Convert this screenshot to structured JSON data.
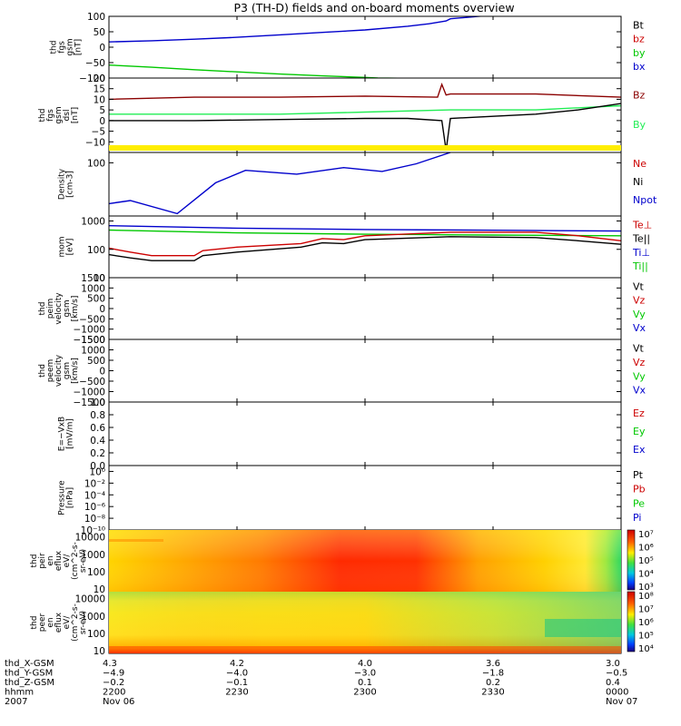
{
  "title": "P3 (TH-D) fields and on-board moments overview",
  "colors": {
    "black": "#000000",
    "red": "#cc0000",
    "darkred": "#8b0000",
    "green": "#00c800",
    "lime": "#22ee55",
    "blue": "#0000cc",
    "yellow": "#ffee00"
  },
  "chart_data": {
    "type": "line",
    "title": "P3 (TH-D) fields and on-board moments overview",
    "x_range_minutes": [
      0,
      120
    ],
    "x_tick_minutes": [
      0,
      30,
      60,
      90,
      120
    ],
    "panels": [
      {
        "id": "fgs",
        "ylabel": [
          "thd",
          "fgs",
          "gsm",
          "[nT]"
        ],
        "ylim": [
          -100,
          100
        ],
        "yticks": [
          -100,
          -50,
          0,
          50,
          100
        ],
        "ytick_labels": [
          "−100",
          "−50",
          "0",
          "50",
          "100"
        ],
        "legend": [
          {
            "text": "Bt",
            "color": "#000000"
          },
          {
            "text": "bz",
            "color": "#cc0000"
          },
          {
            "text": "by",
            "color": "#00c800"
          },
          {
            "text": "bx",
            "color": "#0000cc"
          }
        ],
        "series": [
          {
            "name": "bx",
            "color": "#0000cc",
            "x": [
              0,
              10,
              20,
              30,
              40,
              50,
              60,
              70,
              75,
              79,
              80,
              85,
              90
            ],
            "y": [
              17,
              21,
              26,
              32,
              40,
              48,
              56,
              68,
              76,
              85,
              92,
              98,
              104
            ]
          },
          {
            "name": "by",
            "color": "#00c800",
            "x": [
              0,
              10,
              20,
              30,
              40,
              50,
              60,
              63,
              70
            ],
            "y": [
              -58,
              -65,
              -73,
              -80,
              -87,
              -93,
              -98,
              -100,
              -101
            ]
          }
        ]
      },
      {
        "id": "fgs_dsl",
        "ylabel": [
          "thd",
          "fgs",
          "gsm",
          "dsl",
          "[nT]"
        ],
        "ylim": [
          -15,
          20
        ],
        "yticks": [
          -10,
          -5,
          0,
          5,
          10,
          15,
          20
        ],
        "ytick_labels": [
          "−10",
          "−5",
          "0",
          "5",
          "10",
          "15",
          "20"
        ],
        "legend": [
          {
            "text": "Bz",
            "color": "#8b0000"
          },
          {
            "text": "By",
            "color": "#22ee55"
          }
        ],
        "series": [
          {
            "name": "Bz",
            "color": "#8b0000",
            "x": [
              0,
              20,
              40,
              60,
              77,
              78,
              79,
              80,
              100,
              120
            ],
            "y": [
              10,
              11,
              11,
              11.5,
              11,
              17,
              12,
              12.5,
              12.5,
              11
            ]
          },
          {
            "name": "By",
            "color": "#22ee55",
            "x": [
              0,
              20,
              40,
              60,
              80,
              100,
              110,
              120
            ],
            "y": [
              3,
              3,
              3,
              4,
              5,
              5,
              6,
              7
            ]
          },
          {
            "name": "Bt",
            "color": "#000000",
            "x": [
              0,
              20,
              40,
              60,
              70,
              78,
              79,
              80,
              100,
              110,
              120
            ],
            "y": [
              0,
              0,
              0.5,
              1,
              1,
              0,
              -14,
              1,
              3,
              5,
              8
            ]
          }
        ]
      },
      {
        "id": "density",
        "ylabel": [
          "Density",
          "[cm-3]"
        ],
        "log": true,
        "ylim": [
          0.35,
          300
        ],
        "yticks": [
          100
        ],
        "ytick_labels": [
          "100"
        ],
        "legend": [
          {
            "text": "Ne",
            "color": "#cc0000"
          },
          {
            "text": "Ni",
            "color": "#000000"
          },
          {
            "text": "Npot",
            "color": "#0000cc"
          }
        ],
        "series": [
          {
            "name": "Npot",
            "color": "#0000cc",
            "x": [
              0,
              5,
              16,
              25,
              32,
              44,
              55,
              64,
              72,
              80
            ],
            "y": [
              1.3,
              1.8,
              0.45,
              12,
              45,
              30,
              60,
              40,
              90,
              300
            ]
          }
        ]
      },
      {
        "id": "temperature",
        "ylabel": [
          "mom",
          "[eV]"
        ],
        "log": true,
        "ylim": [
          10,
          1500
        ],
        "yticks": [
          10,
          100,
          1000
        ],
        "ytick_labels": [
          "10",
          "100",
          "1000"
        ],
        "legend": [
          {
            "text": "Te⊥",
            "color": "#cc0000"
          },
          {
            "text": "Te||",
            "color": "#000000"
          },
          {
            "text": "Ti⊥",
            "color": "#0000cc"
          },
          {
            "text": "Ti||",
            "color": "#00c800"
          }
        ],
        "series": [
          {
            "name": "Ti⊥",
            "color": "#0000cc",
            "x": [
              0,
              30,
              60,
              90,
              120
            ],
            "y": [
              680,
              560,
              500,
              470,
              440
            ]
          },
          {
            "name": "Ti||",
            "color": "#00c800",
            "x": [
              0,
              30,
              60,
              90,
              120
            ],
            "y": [
              480,
              380,
              340,
              320,
              300
            ]
          },
          {
            "name": "Te⊥",
            "color": "#cc0000",
            "x": [
              0,
              5,
              10,
              20,
              22,
              30,
              45,
              50,
              55,
              60,
              80,
              100,
              110,
              120
            ],
            "y": [
              110,
              80,
              60,
              60,
              90,
              120,
              160,
              240,
              220,
              300,
              400,
              400,
              300,
              200
            ]
          },
          {
            "name": "Te||",
            "color": "#000000",
            "x": [
              0,
              5,
              10,
              20,
              22,
              30,
              45,
              50,
              55,
              60,
              80,
              100,
              110,
              120
            ],
            "y": [
              65,
              50,
              40,
              40,
              60,
              80,
              120,
              170,
              160,
              220,
              280,
              260,
              200,
              150
            ]
          }
        ]
      },
      {
        "id": "peim",
        "ylabel": [
          "thd",
          "peim",
          "velocity",
          "gsm",
          "[km/s]"
        ],
        "ylim": [
          -1500,
          1500
        ],
        "yticks": [
          -1500,
          -1000,
          -500,
          0,
          500,
          1000,
          1500
        ],
        "ytick_labels": [
          "−1500",
          "−1000",
          "−500",
          "0",
          "500",
          "1000",
          "1500"
        ],
        "legend": [
          {
            "text": "Vt",
            "color": "#000000"
          },
          {
            "text": "Vz",
            "color": "#cc0000"
          },
          {
            "text": "Vy",
            "color": "#00c800"
          },
          {
            "text": "Vx",
            "color": "#0000cc"
          }
        ],
        "series": []
      },
      {
        "id": "peem",
        "ylabel": [
          "thd",
          "peem",
          "velocity",
          "gsm",
          "[km/s]"
        ],
        "ylim": [
          -1500,
          1500
        ],
        "yticks": [
          -1500,
          -1000,
          -500,
          0,
          500,
          1000,
          1500
        ],
        "ytick_labels": [
          "−1500",
          "−1000",
          "−500",
          "0",
          "500",
          "1000",
          "1500"
        ],
        "legend": [
          {
            "text": "Vt",
            "color": "#000000"
          },
          {
            "text": "Vz",
            "color": "#cc0000"
          },
          {
            "text": "Vy",
            "color": "#00c800"
          },
          {
            "text": "Vx",
            "color": "#0000cc"
          }
        ],
        "series": []
      },
      {
        "id": "efield",
        "ylabel": [
          "E=−VxB",
          "[mV/m]"
        ],
        "ylim": [
          0,
          1
        ],
        "yticks": [
          0,
          0.2,
          0.4,
          0.6,
          0.8,
          1
        ],
        "ytick_labels": [
          "0.0",
          "0.2",
          "0.4",
          "0.6",
          "0.8",
          "1.0"
        ],
        "legend": [
          {
            "text": "Ez",
            "color": "#cc0000"
          },
          {
            "text": "Ey",
            "color": "#00c800"
          },
          {
            "text": "Ex",
            "color": "#0000cc"
          }
        ],
        "series": []
      },
      {
        "id": "pressure",
        "ylabel": [
          "Pressure",
          "[nPa]"
        ],
        "log": true,
        "ylim": [
          1e-10,
          10
        ],
        "yticks": [
          1e-10,
          1e-08,
          1e-06,
          0.0001,
          0.01,
          1
        ],
        "ytick_labels": [
          "10⁻¹⁰",
          "10⁻⁸",
          "10⁻⁶",
          "10⁻⁴",
          "10⁻²",
          "10⁰"
        ],
        "legend": [
          {
            "text": "Pt",
            "color": "#000000"
          },
          {
            "text": "Pb",
            "color": "#cc0000"
          },
          {
            "text": "Pe",
            "color": "#00c800"
          },
          {
            "text": "Pi",
            "color": "#0000cc"
          }
        ],
        "series": []
      },
      {
        "id": "peir",
        "type": "heatmap",
        "ylabel": [
          "thd",
          "peir",
          "en",
          "eflux",
          "eV/",
          "(cm^2-s-",
          "sr-eV)"
        ],
        "log": true,
        "ylim": [
          7,
          25000
        ],
        "yticks": [
          10,
          100,
          1000,
          10000
        ],
        "ytick_labels": [
          "10",
          "100",
          "1000",
          "10000"
        ],
        "colorbar_ticks": [
          "10⁷",
          "10⁶",
          "10⁵",
          "10⁴",
          "10³"
        ],
        "colorbar_values": [
          10000000,
          1000000,
          100000,
          10000,
          1000
        ]
      },
      {
        "id": "peer",
        "type": "heatmap",
        "ylabel": [
          "thd",
          "peer",
          "en",
          "eflux",
          "eV/",
          "(cm^2-s-",
          "sr-eV)"
        ],
        "log": true,
        "ylim": [
          7,
          25000
        ],
        "yticks": [
          10,
          100,
          1000,
          10000
        ],
        "ytick_labels": [
          "10",
          "100",
          "1000",
          "10000"
        ],
        "colorbar_ticks": [
          "10⁸",
          "10⁷",
          "10⁶",
          "10⁵",
          "10⁴"
        ],
        "colorbar_values": [
          100000000,
          10000000,
          1000000,
          100000,
          10000
        ]
      }
    ],
    "xaxis_rows": [
      {
        "label": "thd_X-GSM",
        "values": [
          "4.3",
          "4.2",
          "4.0",
          "3.6",
          "3.0"
        ]
      },
      {
        "label": "thd_Y-GSM",
        "values": [
          "−4.9",
          "−4.0",
          "−3.0",
          "−1.8",
          "−0.5"
        ]
      },
      {
        "label": "thd_Z-GSM",
        "values": [
          "−0.2",
          "−0.1",
          "0.1",
          "0.2",
          "0.4"
        ]
      },
      {
        "label": "hhmm",
        "values": [
          "2200",
          "2230",
          "2300",
          "2330",
          "0000"
        ]
      },
      {
        "label": "2007",
        "values": [
          "Nov 06",
          "",
          "",
          "",
          "Nov 07"
        ]
      }
    ]
  }
}
